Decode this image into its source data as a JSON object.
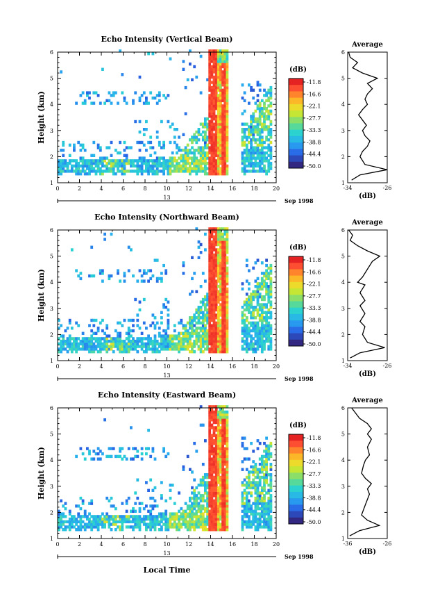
{
  "shared": {
    "height_label": "Height (km)",
    "date_label": "Sep 1998",
    "day_label": "13",
    "average_title": "Average",
    "unit_label": "(dB)",
    "local_time_label": "Local Time",
    "colorbar_labels": [
      "-11.8",
      "-16.6",
      "-22.1",
      "-27.7",
      "-33.3",
      "-38.8",
      "-44.4",
      "-50.0"
    ]
  },
  "chart_data": [
    {
      "type": "heatmap",
      "title": "Echo Intensity (Vertical Beam)",
      "xlabel": "",
      "ylabel": "Height (km)",
      "xlim": [
        0,
        20
      ],
      "ylim": [
        1,
        6
      ],
      "x_ticks": [
        0,
        2,
        4,
        6,
        8,
        10,
        12,
        14,
        16,
        18,
        20
      ],
      "y_ticks": [
        1,
        2,
        3,
        4,
        5,
        6
      ],
      "colorbar": {
        "label": "(dB)",
        "min": -50.0,
        "max": -11.0,
        "ticks": [
          -11.8,
          -16.6,
          -22.1,
          -27.7,
          -33.3,
          -38.8,
          -44.4,
          -50.0
        ]
      },
      "average_profile": {
        "title": "Average",
        "xlabel": "(dB)",
        "xlim": [
          -34,
          -26
        ],
        "x_ticks": [
          -34,
          -26
        ],
        "ylim": [
          1,
          6
        ],
        "points": [
          [
            -33.2,
            1.1
          ],
          [
            -31.5,
            1.3
          ],
          [
            -26.0,
            1.5
          ],
          [
            -30.5,
            1.7
          ],
          [
            -31.5,
            2.0
          ],
          [
            -31.0,
            2.2
          ],
          [
            -30.0,
            2.4
          ],
          [
            -29.5,
            2.6
          ],
          [
            -30.5,
            2.8
          ],
          [
            -31.0,
            3.0
          ],
          [
            -30.2,
            3.2
          ],
          [
            -31.0,
            3.4
          ],
          [
            -31.8,
            3.6
          ],
          [
            -31.0,
            3.8
          ],
          [
            -30.0,
            4.0
          ],
          [
            -30.5,
            4.2
          ],
          [
            -30.0,
            4.4
          ],
          [
            -29.0,
            4.6
          ],
          [
            -30.0,
            4.8
          ],
          [
            -28.0,
            5.0
          ],
          [
            -31.0,
            5.2
          ],
          [
            -33.0,
            5.4
          ],
          [
            -32.0,
            5.6
          ],
          [
            -33.5,
            5.8
          ],
          [
            -33.8,
            6.0
          ]
        ]
      }
    },
    {
      "type": "heatmap",
      "title": "Echo Intensity (Northward Beam)",
      "xlabel": "",
      "ylabel": "Height (km)",
      "xlim": [
        0,
        20
      ],
      "ylim": [
        1,
        6
      ],
      "x_ticks": [
        0,
        2,
        4,
        6,
        8,
        10,
        12,
        14,
        16,
        18,
        20
      ],
      "y_ticks": [
        1,
        2,
        3,
        4,
        5,
        6
      ],
      "colorbar": {
        "label": "(dB)",
        "min": -50.0,
        "max": -11.0,
        "ticks": [
          -11.8,
          -16.6,
          -22.1,
          -27.7,
          -33.3,
          -38.8,
          -44.4,
          -50.0
        ]
      },
      "average_profile": {
        "title": "Average",
        "xlabel": "(dB)",
        "xlim": [
          -34,
          -26
        ],
        "x_ticks": [
          -34,
          -26
        ],
        "ylim": [
          1,
          6
        ],
        "points": [
          [
            -33.5,
            1.1
          ],
          [
            -31.5,
            1.3
          ],
          [
            -26.5,
            1.5
          ],
          [
            -30.0,
            1.7
          ],
          [
            -31.0,
            2.0
          ],
          [
            -30.5,
            2.3
          ],
          [
            -31.5,
            2.5
          ],
          [
            -30.5,
            2.8
          ],
          [
            -31.5,
            3.1
          ],
          [
            -30.5,
            3.3
          ],
          [
            -31.5,
            3.6
          ],
          [
            -30.5,
            3.9
          ],
          [
            -32.0,
            4.0
          ],
          [
            -31.0,
            4.2
          ],
          [
            -30.0,
            4.5
          ],
          [
            -29.0,
            4.8
          ],
          [
            -27.5,
            5.0
          ],
          [
            -30.0,
            5.2
          ],
          [
            -32.0,
            5.4
          ],
          [
            -33.5,
            5.6
          ],
          [
            -33.0,
            5.8
          ],
          [
            -33.8,
            6.0
          ]
        ]
      }
    },
    {
      "type": "heatmap",
      "title": "Echo Intensity (Eastward Beam)",
      "xlabel": "Local Time",
      "ylabel": "Height (km)",
      "xlim": [
        0,
        20
      ],
      "ylim": [
        1,
        6
      ],
      "x_ticks": [
        0,
        2,
        4,
        6,
        8,
        10,
        12,
        14,
        16,
        18,
        20
      ],
      "y_ticks": [
        1,
        2,
        3,
        4,
        5,
        6
      ],
      "colorbar": {
        "label": "(dB)",
        "min": -50.0,
        "max": -11.0,
        "ticks": [
          -11.8,
          -16.6,
          -22.1,
          -27.7,
          -33.3,
          -38.8,
          -44.4,
          -50.0
        ]
      },
      "average_profile": {
        "title": "Average",
        "xlabel": "(dB)",
        "xlim": [
          -36,
          -26
        ],
        "x_ticks": [
          -36,
          -26
        ],
        "ylim": [
          1,
          6
        ],
        "points": [
          [
            -35.5,
            1.1
          ],
          [
            -33.0,
            1.3
          ],
          [
            -28.0,
            1.5
          ],
          [
            -31.0,
            1.7
          ],
          [
            -32.5,
            1.9
          ],
          [
            -32.0,
            2.1
          ],
          [
            -31.5,
            2.3
          ],
          [
            -31.0,
            2.5
          ],
          [
            -30.5,
            2.7
          ],
          [
            -31.0,
            2.9
          ],
          [
            -30.0,
            3.1
          ],
          [
            -31.5,
            3.3
          ],
          [
            -32.5,
            3.5
          ],
          [
            -32.0,
            3.8
          ],
          [
            -31.5,
            4.0
          ],
          [
            -30.5,
            4.2
          ],
          [
            -31.0,
            4.5
          ],
          [
            -30.0,
            4.8
          ],
          [
            -31.0,
            5.0
          ],
          [
            -30.0,
            5.2
          ],
          [
            -31.0,
            5.4
          ],
          [
            -33.0,
            5.6
          ],
          [
            -34.0,
            5.8
          ],
          [
            -35.0,
            6.0
          ]
        ]
      }
    }
  ]
}
